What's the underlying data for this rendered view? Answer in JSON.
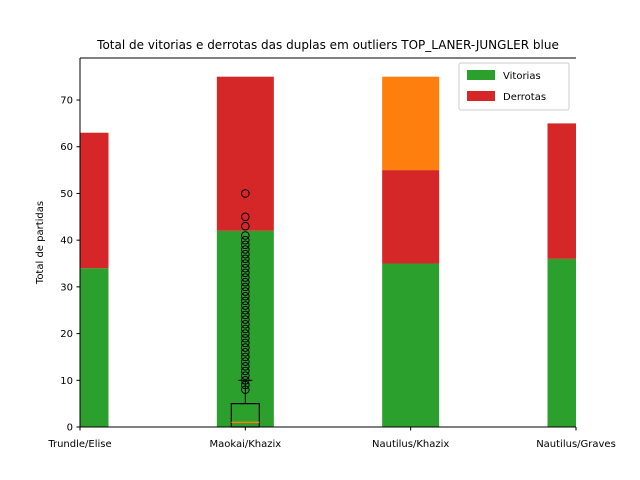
{
  "chart_data": {
    "type": "bar",
    "stacked": true,
    "title": "Total de vitorias e derrotas das duplas em outliers  TOP_LANER-JUNGLER blue",
    "xlabel": "",
    "ylabel": "Total de partidas",
    "ylim": [
      0,
      79
    ],
    "yticks": [
      0,
      10,
      20,
      30,
      40,
      50,
      60,
      70
    ],
    "categories": [
      "Trundle/Elise",
      "Maokai/Khazix",
      "Nautilus/Khazix",
      "Nautilus/Graves"
    ],
    "series": [
      {
        "name": "Vitorias",
        "color": "#2ca02c",
        "values": [
          34,
          42,
          35,
          36
        ]
      },
      {
        "name": "Derrotas",
        "color": "#d62728",
        "values": [
          29,
          33,
          20,
          29
        ]
      },
      {
        "color": "#ff7f0e",
        "values": [
          0,
          0,
          20,
          0
        ]
      }
    ],
    "legend": {
      "position": "top-right",
      "entries": [
        "Vitorias",
        "Derrotas"
      ]
    },
    "grid": false,
    "boxplot": {
      "category": "Maokai/Khazix",
      "whisker_low": 0,
      "q1": 0,
      "median": 1,
      "q3": 5,
      "whisker_high": 10,
      "median_color": "#ff7f0e",
      "outliers": [
        8,
        9,
        10,
        11,
        12,
        13,
        14,
        15,
        16,
        17,
        18,
        19,
        20,
        21,
        22,
        23,
        24,
        25,
        26,
        27,
        28,
        29,
        30,
        31,
        32,
        33,
        34,
        35,
        36,
        37,
        38,
        39,
        40,
        41,
        43,
        45,
        50
      ]
    }
  }
}
